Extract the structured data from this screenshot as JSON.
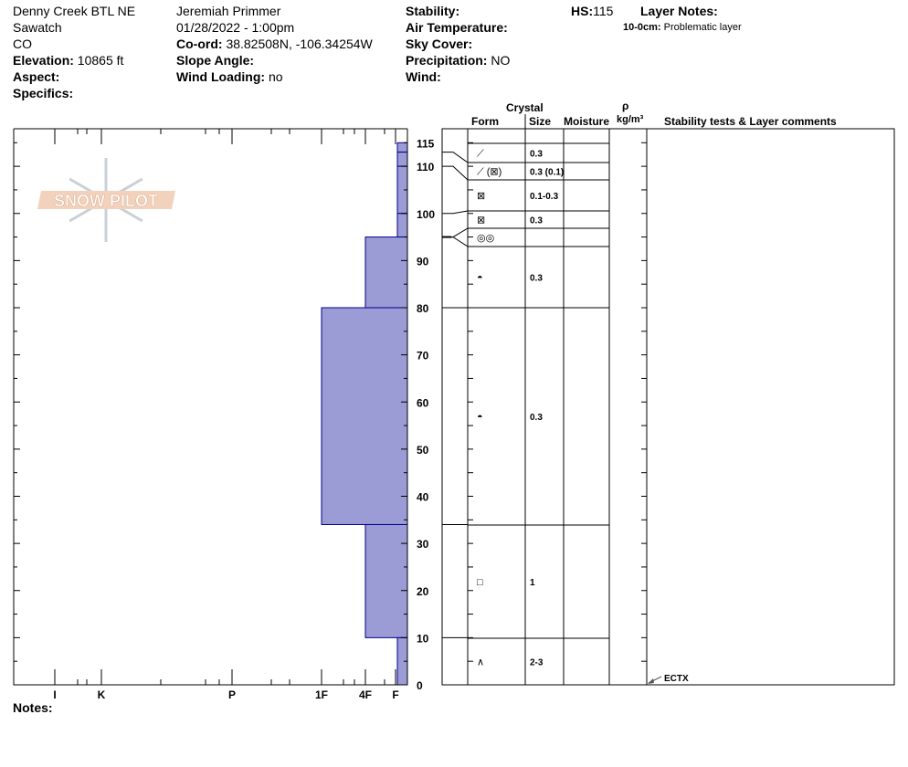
{
  "header": {
    "location": "Denny Creek BTL NE",
    "range": "Sawatch",
    "state": "CO",
    "elevation_label": "Elevation:",
    "elevation": "10865 ft",
    "aspect_label": "Aspect:",
    "aspect": "",
    "specifics_label": "Specifics:",
    "specifics": "",
    "observer": "Jeremiah Primmer",
    "datetime": "01/28/2022 - 1:00pm",
    "coord_label": "Co-ord:",
    "coord": "38.82508N, -106.34254W",
    "slope_label": "Slope Angle:",
    "slope": "",
    "wind_loading_label": "Wind Loading:",
    "wind_loading": "no",
    "stability_label": "Stability:",
    "stability": "",
    "air_temp_label": "Air Temperature:",
    "air_temp": "",
    "sky_label": "Sky Cover:",
    "sky": "",
    "precip_label": "Precipitation:",
    "precip": "NO",
    "wind_label": "Wind:",
    "wind": "",
    "hs_label": "HS:",
    "hs": "115",
    "layer_notes_label": "Layer Notes:",
    "layer_notes": [
      {
        "range": "10-0cm:",
        "text": "Problematic layer"
      }
    ]
  },
  "logo": "SNOW PILOT",
  "columns": {
    "crystal": "Crystal",
    "form": "Form",
    "size": "Size",
    "moisture": "Moisture",
    "rho": "ρ",
    "density_unit": "kg/m³",
    "stability": "Stability tests & Layer comments"
  },
  "hardness_axis": {
    "labels": [
      "I",
      "K",
      "P",
      "1F",
      "4F",
      "F"
    ],
    "values": [
      1,
      2,
      3,
      4,
      5,
      6
    ]
  },
  "height_axis": {
    "ticks": [
      0,
      10,
      20,
      30,
      40,
      50,
      60,
      70,
      80,
      90,
      100,
      110,
      115
    ]
  },
  "colors": {
    "profile_fill": "#9b9bd6",
    "profile_stroke": "#00008b"
  },
  "layers": [
    {
      "top": 115,
      "bottom": 113,
      "hardness": "F",
      "form": "⟋",
      "size": "0.3"
    },
    {
      "top": 113,
      "bottom": 110,
      "hardness": "F",
      "form": "⟋ (⊠)",
      "size": "0.3 (0.1)"
    },
    {
      "top": 110,
      "bottom": 100,
      "hardness": "F",
      "form": "⊠",
      "size": "0.1-0.3"
    },
    {
      "top": 100,
      "bottom": 95,
      "hardness": "F",
      "form": "⊠",
      "size": "0.3"
    },
    {
      "top": 95,
      "bottom": 95,
      "hardness": "F",
      "form": "◎◎",
      "size": ""
    },
    {
      "top": 95,
      "bottom": 80,
      "hardness": "4F",
      "form": "◓",
      "size": "0.3"
    },
    {
      "top": 80,
      "bottom": 34,
      "hardness": "1F",
      "form": "◓",
      "size": "0.3"
    },
    {
      "top": 34,
      "bottom": 10,
      "hardness": "4F",
      "form": "□",
      "size": "1"
    },
    {
      "top": 10,
      "bottom": 0,
      "hardness": "F",
      "form": "∧",
      "size": "2-3"
    }
  ],
  "stability_tests": [
    {
      "height": 0,
      "label": "ECTX"
    }
  ],
  "notes_label": "Notes:"
}
